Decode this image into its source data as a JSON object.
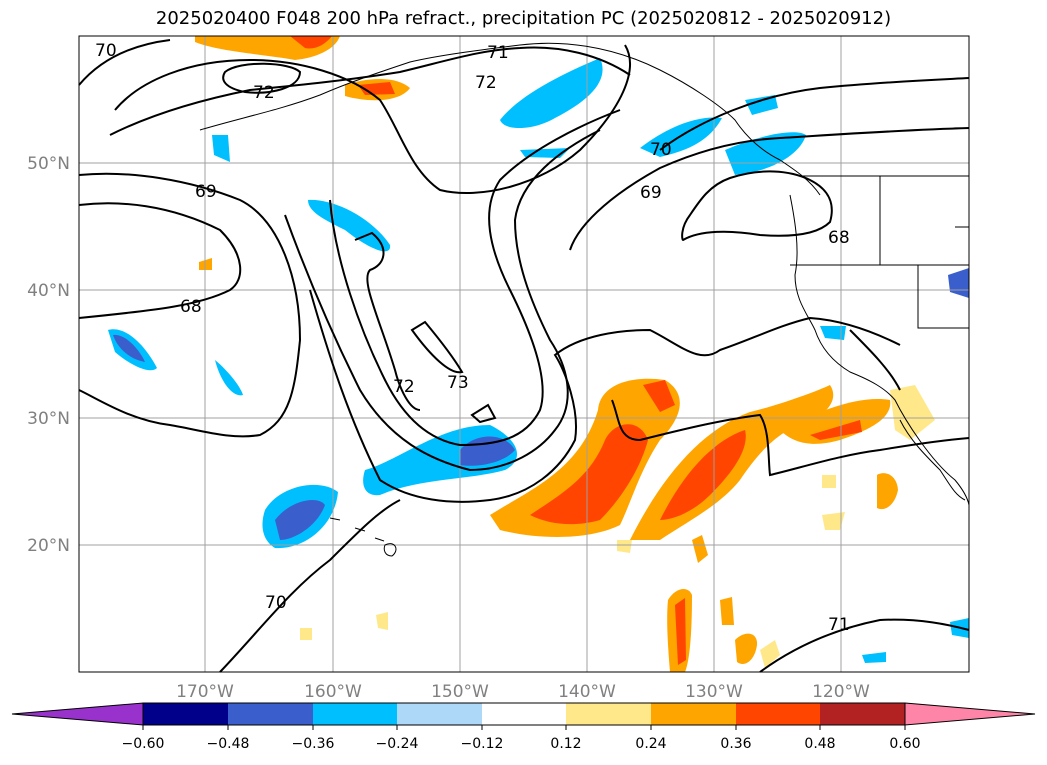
{
  "title": "2025020400 F048 200 hPa refract., precipitation PC (2025020812 - 2025020912)",
  "axes": {
    "lat_labels": [
      "50°N",
      "40°N",
      "30°N",
      "20°N"
    ],
    "lon_labels": [
      "170°W",
      "160°W",
      "150°W",
      "140°W",
      "130°W",
      "120°W"
    ]
  },
  "contour_labels": [
    "70",
    "71",
    "72",
    "69",
    "70",
    "69",
    "68",
    "68",
    "72",
    "73",
    "70",
    "71"
  ],
  "colorbar": {
    "ticks": [
      "−0.60",
      "−0.48",
      "−0.36",
      "−0.24",
      "−0.12",
      "0.12",
      "0.24",
      "0.36",
      "0.48",
      "0.60"
    ],
    "colors": [
      "#9932cc",
      "#00008b",
      "#3a5fcd",
      "#00bfff",
      "#add8f7",
      "#ffffff",
      "#ffe88a",
      "#ffa500",
      "#ff4500",
      "#b22222",
      "#ff85a8"
    ]
  }
}
